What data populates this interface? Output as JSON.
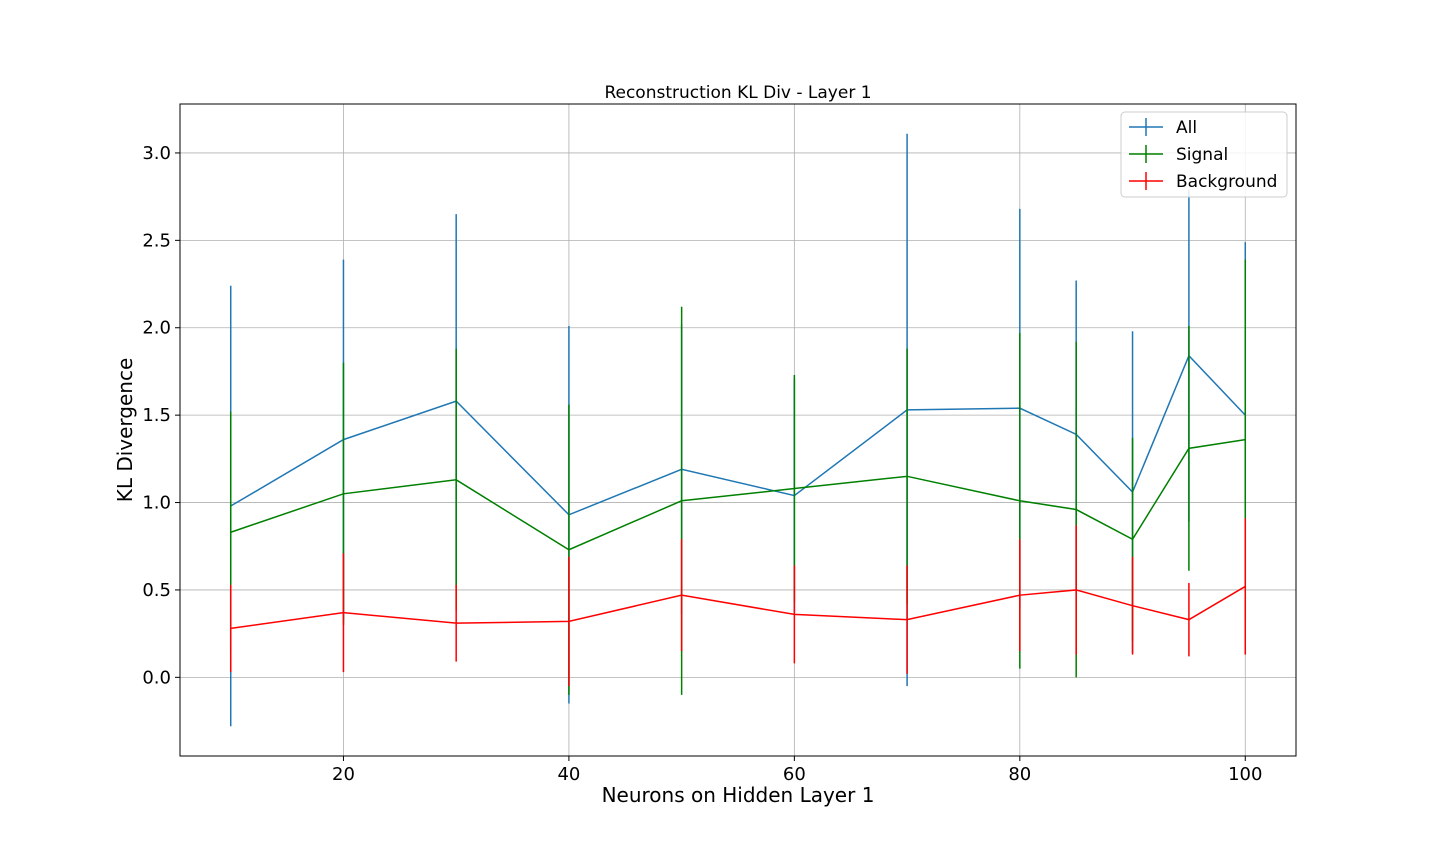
{
  "chart_data": {
    "type": "line",
    "title": "Reconstruction KL Div - Layer 1",
    "xlabel": "Neurons on Hidden Layer 1",
    "ylabel": "KL Divergence",
    "xlim": [
      5.5,
      104.5
    ],
    "ylim": [
      -0.45,
      3.28
    ],
    "xticks": [
      20,
      40,
      60,
      80,
      100
    ],
    "yticks": [
      0.0,
      0.5,
      1.0,
      1.5,
      2.0,
      2.5,
      3.0
    ],
    "xtick_labels": [
      "20",
      "40",
      "60",
      "80",
      "100"
    ],
    "ytick_labels": [
      "0.0",
      "0.5",
      "1.0",
      "1.5",
      "2.0",
      "2.5",
      "3.0"
    ],
    "grid": true,
    "legend_position": "top-right",
    "x": [
      10,
      20,
      30,
      40,
      50,
      60,
      70,
      80,
      85,
      90,
      95,
      100
    ],
    "series": [
      {
        "name": "All",
        "color": "#1f77b4",
        "values": [
          0.98,
          1.36,
          1.58,
          0.93,
          1.19,
          1.04,
          1.53,
          1.54,
          1.39,
          1.06,
          1.84,
          1.5
        ],
        "errors": [
          1.26,
          1.03,
          1.07,
          1.08,
          0.83,
          0.67,
          1.58,
          1.14,
          0.88,
          0.92,
          0.95,
          0.99
        ]
      },
      {
        "name": "Signal",
        "color": "#008000",
        "values": [
          0.83,
          1.05,
          1.13,
          0.73,
          1.01,
          1.08,
          1.15,
          1.01,
          0.96,
          0.79,
          1.31,
          1.36
        ],
        "errors": [
          0.69,
          0.75,
          0.75,
          0.83,
          1.11,
          0.65,
          0.73,
          0.96,
          0.96,
          0.58,
          0.7,
          1.03
        ]
      },
      {
        "name": "Background",
        "color": "#ff0000",
        "values": [
          0.28,
          0.37,
          0.31,
          0.32,
          0.47,
          0.36,
          0.33,
          0.47,
          0.5,
          0.41,
          0.33,
          0.52
        ],
        "errors": [
          0.25,
          0.34,
          0.22,
          0.37,
          0.32,
          0.28,
          0.31,
          0.32,
          0.37,
          0.28,
          0.21,
          0.39
        ]
      }
    ]
  }
}
